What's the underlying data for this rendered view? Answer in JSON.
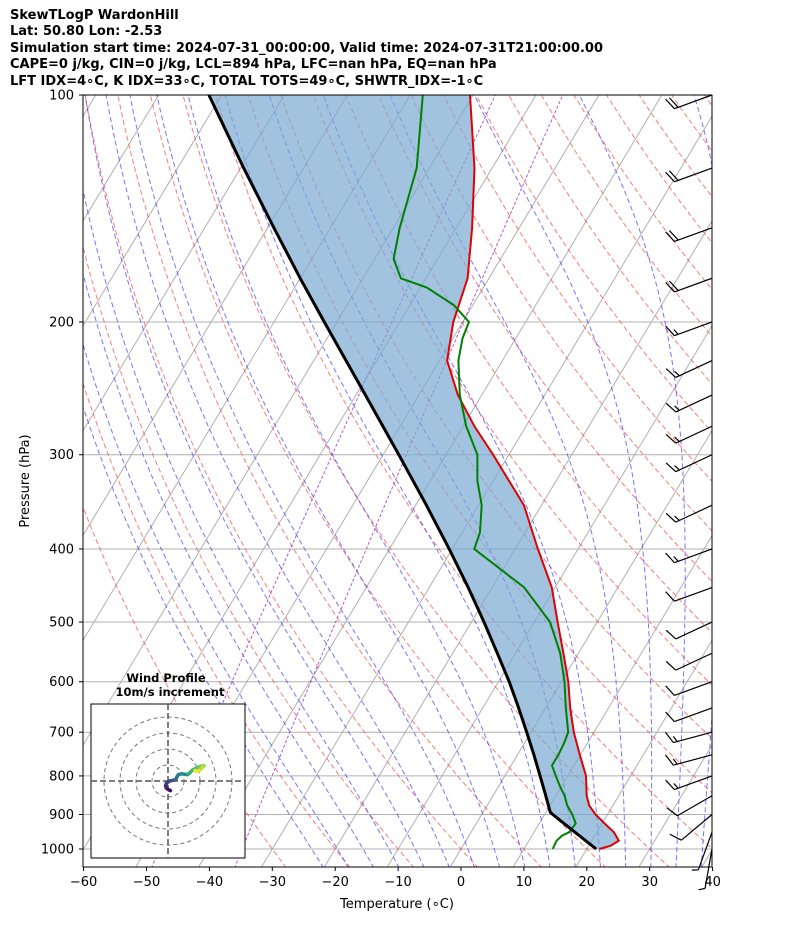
{
  "header": {
    "line1": "SkewTLogP WardonHill",
    "line2": "Lat: 50.80   Lon: -2.53",
    "line3": "Simulation start time: 2024-07-31_00:00:00, Valid time: 2024-07-31T21:00:00.00",
    "line4": "CAPE=0 j/kg, CIN=0 j/kg, LCL=894 hPa, LFC=nan hPa, EQ=nan hPa",
    "line5": "LFT IDX=4∘C, K IDX=33∘C, TOTAL TOTS=49∘C, SHWTR_IDX=-1∘C"
  },
  "chart_data": {
    "type": "skewt",
    "title": "SkewTLogP WardonHill",
    "xlabel": "Temperature (∘C)",
    "ylabel": "Pressure (hPa)",
    "xlim": [
      -60,
      40
    ],
    "ylim": [
      1050,
      100
    ],
    "x_ticks": [
      -60,
      -50,
      -40,
      -30,
      -20,
      -10,
      0,
      10,
      20,
      30,
      40
    ],
    "x_tick_labels": [
      "−60",
      "−50",
      "−40",
      "−30",
      "−20",
      "−10",
      "0",
      "10",
      "20",
      "30",
      "40"
    ],
    "y_ticks": [
      1000,
      900,
      800,
      700,
      600,
      500,
      400,
      300,
      200,
      100
    ],
    "y_tick_labels": [
      "1000",
      "900",
      "800",
      "700",
      "600",
      "500",
      "400",
      "300",
      "200",
      "100"
    ],
    "grid": true,
    "colors": {
      "temperature": "#e00000",
      "dewpoint": "#008000",
      "parcel": "#000000",
      "cape_fill": "#7aa9d1",
      "dry_adiabat": "#ff4040",
      "moist_adiabat": "#3a3aff",
      "mixing_ratio": "#9a30c8",
      "isotherm": "#999999"
    },
    "temperature_profile": {
      "name": "Temperature",
      "pressure": [
        1000,
        990,
        975,
        950,
        925,
        900,
        875,
        850,
        800,
        750,
        700,
        650,
        600,
        550,
        500,
        450,
        400,
        350,
        300,
        275,
        250,
        225,
        200,
        175,
        150,
        125,
        100
      ],
      "value": [
        22,
        23.5,
        24.3,
        22.7,
        20.4,
        18.1,
        16.2,
        14.9,
        12.9,
        9.9,
        6.8,
        3.9,
        1.1,
        -2.4,
        -6.3,
        -10.5,
        -16.4,
        -22.8,
        -32.5,
        -38.2,
        -43.8,
        -48.8,
        -51.5,
        -53.4,
        -57.5,
        -62.8,
        -70.5
      ]
    },
    "dewpoint_profile": {
      "name": "Dewpoint",
      "pressure": [
        1000,
        990,
        975,
        960,
        950,
        925,
        900,
        875,
        850,
        825,
        800,
        775,
        750,
        725,
        700,
        650,
        600,
        550,
        500,
        450,
        400,
        380,
        350,
        325,
        300,
        275,
        250,
        225,
        210,
        200,
        190,
        180,
        175,
        165,
        150,
        125,
        100
      ],
      "value": [
        14.6,
        14.5,
        14.4,
        14.8,
        15.6,
        15.8,
        14.4,
        12.7,
        11.4,
        9.7,
        8.1,
        6.5,
        6.5,
        6.3,
        5.9,
        3.2,
        0.5,
        -2.9,
        -7.5,
        -14.9,
        -26.5,
        -27.2,
        -29.5,
        -32.5,
        -35.0,
        -39.5,
        -43.5,
        -47.0,
        -48.5,
        -49.0,
        -53.0,
        -59.0,
        -64.0,
        -67.0,
        -69.0,
        -72.0,
        -78.0
      ]
    },
    "parcel_profile": {
      "name": "Parcel",
      "pressure": [
        1000,
        950,
        900,
        894,
        850,
        800,
        750,
        700,
        650,
        600,
        550,
        500,
        450,
        400,
        350,
        300,
        250,
        200,
        175,
        150,
        125,
        100
      ],
      "value": [
        21.5,
        16.5,
        11.3,
        10.7,
        8.4,
        5.6,
        2.6,
        -0.7,
        -4.3,
        -8.3,
        -12.9,
        -18.0,
        -23.8,
        -30.5,
        -38.3,
        -47.5,
        -58.5,
        -72.0,
        -80.0,
        -89.0,
        -99.5,
        -112.0
      ]
    },
    "cape_shading": {
      "name": "Shaded area between parcel and temperature",
      "pressure_range": [
        1000,
        100
      ]
    },
    "wind_barbs": {
      "pressure": [
        1000,
        950,
        900,
        850,
        800,
        750,
        700,
        650,
        600,
        550,
        500,
        450,
        400,
        350,
        300,
        275,
        250,
        225,
        200,
        175,
        150,
        125,
        100
      ],
      "speed_kt": [
        5,
        5,
        10,
        10,
        15,
        15,
        15,
        10,
        10,
        10,
        10,
        10,
        15,
        15,
        15,
        15,
        15,
        15,
        15,
        20,
        20,
        20,
        20
      ],
      "direction_deg": [
        190,
        200,
        230,
        240,
        250,
        255,
        255,
        250,
        250,
        245,
        245,
        250,
        250,
        245,
        245,
        245,
        245,
        245,
        250,
        250,
        250,
        250,
        250
      ]
    },
    "inset": {
      "type": "hodograph",
      "title": "Wind Profile",
      "subtitle": "10m/s increment",
      "rings_ms": [
        10,
        20,
        30,
        40
      ],
      "u": [
        1.5,
        0.5,
        -1.0,
        -1.5,
        -1.0,
        1.0,
        3.5,
        5.0,
        5.5,
        6.5,
        8.5,
        12.0,
        13.0,
        13.5,
        15.5,
        18.5,
        20.0,
        21.5,
        22.5,
        21.5,
        19.5,
        17.5,
        17.0
      ],
      "v": [
        -6.0,
        -5.5,
        -4.5,
        -3.0,
        -1.5,
        0.0,
        0.5,
        1.0,
        2.5,
        4.0,
        4.5,
        4.0,
        4.5,
        5.0,
        7.0,
        8.5,
        9.0,
        9.5,
        9.5,
        8.5,
        6.5,
        6.0,
        6.5
      ]
    }
  }
}
